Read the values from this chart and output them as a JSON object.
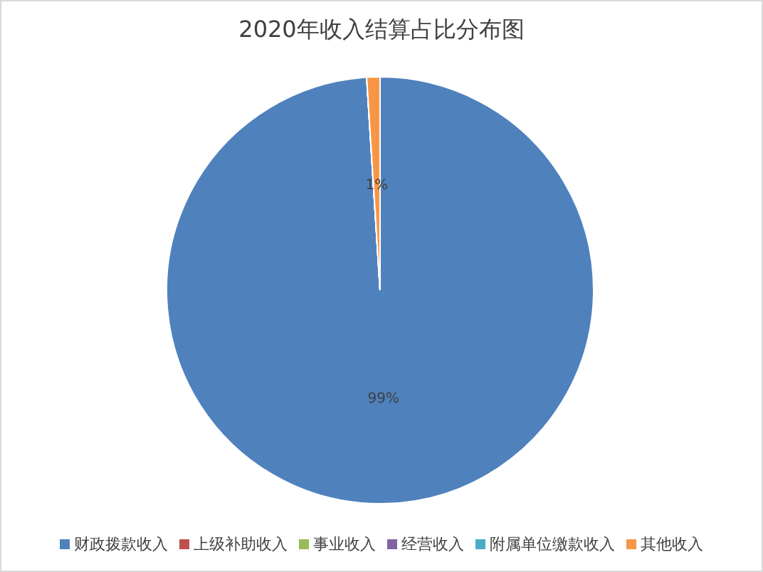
{
  "chart_data": {
    "type": "pie",
    "title": "2020年收入结算占比分布图",
    "categories": [
      "财政拨款收入",
      "上级补助收入",
      "事业收入",
      "经营收入",
      "附属单位缴款收入",
      "其他收入"
    ],
    "values": [
      99,
      0,
      0,
      0,
      0,
      1
    ],
    "colors": [
      "#4f81bd",
      "#c0504d",
      "#9bbb59",
      "#8064a2",
      "#4bacc6",
      "#f79646"
    ],
    "value_labels": [
      "99%",
      null,
      null,
      null,
      null,
      "1%"
    ],
    "legend": "bottom"
  }
}
